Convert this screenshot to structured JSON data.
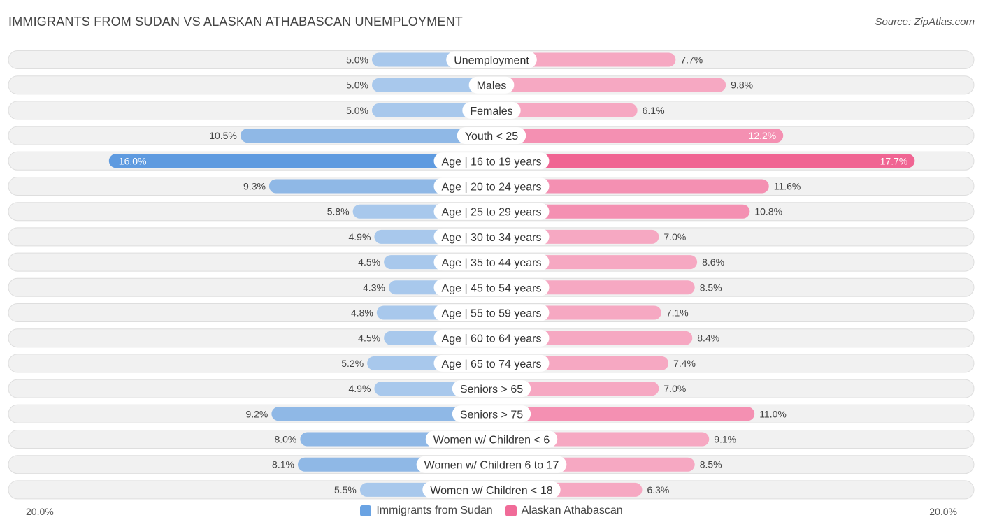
{
  "title": "IMMIGRANTS FROM SUDAN VS ALASKAN ATHABASCAN UNEMPLOYMENT",
  "source": "Source: ZipAtlas.com",
  "colors": {
    "left_light": "#a8c8ec",
    "left_dark": "#5f9be0",
    "right_light": "#f6a8c2",
    "right_dark": "#f06593",
    "row_bg": "#f1f1f1",
    "row_border": "#dedede"
  },
  "axis": {
    "left_label": "20.0%",
    "right_label": "20.0%"
  },
  "legend": [
    {
      "label": "Immigrants from Sudan",
      "color": "#6aa3e3"
    },
    {
      "label": "Alaskan Athabascan",
      "color": "#f06b98"
    }
  ],
  "chart_data": {
    "type": "bar",
    "orientation": "diverging-horizontal",
    "xlim": [
      0,
      20
    ],
    "unit": "%",
    "categories": [
      "Unemployment",
      "Males",
      "Females",
      "Youth < 25",
      "Age | 16 to 19 years",
      "Age | 20 to 24 years",
      "Age | 25 to 29 years",
      "Age | 30 to 34 years",
      "Age | 35 to 44 years",
      "Age | 45 to 54 years",
      "Age | 55 to 59 years",
      "Age | 60 to 64 years",
      "Age | 65 to 74 years",
      "Seniors > 65",
      "Seniors > 75",
      "Women w/ Children < 6",
      "Women w/ Children 6 to 17",
      "Women w/ Children < 18"
    ],
    "series": [
      {
        "name": "Immigrants from Sudan",
        "values": [
          5.0,
          5.0,
          5.0,
          10.5,
          16.0,
          9.3,
          5.8,
          4.9,
          4.5,
          4.3,
          4.8,
          4.5,
          5.2,
          4.9,
          9.2,
          8.0,
          8.1,
          5.5
        ],
        "labels": [
          "5.0%",
          "5.0%",
          "5.0%",
          "10.5%",
          "16.0%",
          "9.3%",
          "5.8%",
          "4.9%",
          "4.5%",
          "4.3%",
          "4.8%",
          "4.5%",
          "5.2%",
          "4.9%",
          "9.2%",
          "8.0%",
          "8.1%",
          "5.5%"
        ]
      },
      {
        "name": "Alaskan Athabascan",
        "values": [
          7.7,
          9.8,
          6.1,
          12.2,
          17.7,
          11.6,
          10.8,
          7.0,
          8.6,
          8.5,
          7.1,
          8.4,
          7.4,
          7.0,
          11.0,
          9.1,
          8.5,
          6.3
        ],
        "labels": [
          "7.7%",
          "9.8%",
          "6.1%",
          "12.2%",
          "17.7%",
          "11.6%",
          "10.8%",
          "7.0%",
          "8.6%",
          "8.5%",
          "7.1%",
          "8.4%",
          "7.4%",
          "7.0%",
          "11.0%",
          "9.1%",
          "8.5%",
          "6.3%"
        ]
      }
    ]
  }
}
